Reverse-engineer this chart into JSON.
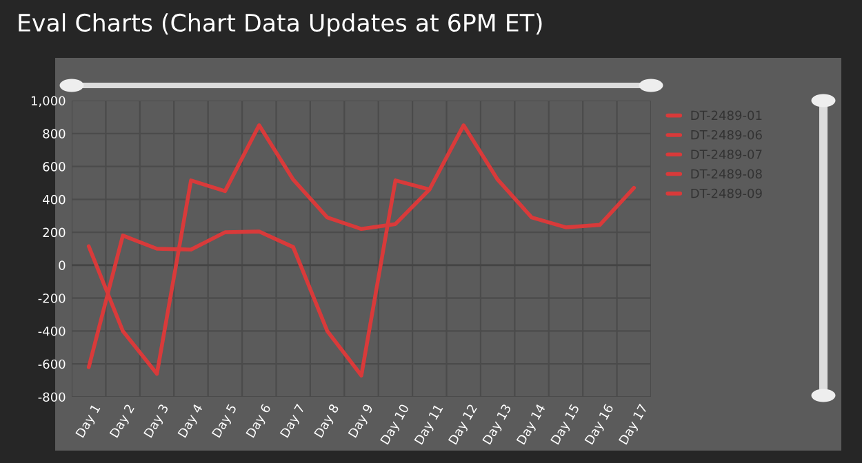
{
  "chart_data": {
    "type": "line",
    "title": "Eval Charts (Chart Data Updates at 6PM ET)",
    "categories": [
      "Day 1",
      "Day 2",
      "Day 3",
      "Day 4",
      "Day 5",
      "Day 6",
      "Day 7",
      "Day 8",
      "Day 9",
      "Day 10",
      "Day 11",
      "Day 12",
      "Day 13",
      "Day 14",
      "Day 15",
      "Day 16",
      "Day 17"
    ],
    "series": [
      {
        "name": "DT-2489-01",
        "color": "#d93a3a",
        "values": [
          115,
          -400,
          -660,
          515,
          450,
          850,
          520,
          290,
          220,
          250,
          460,
          850,
          520,
          290,
          230,
          245,
          470
        ]
      },
      {
        "name": "DT-2489-06",
        "color": "#d93a3a",
        "values": [
          -620,
          180,
          100,
          95,
          200,
          205,
          110,
          -400,
          -670,
          515,
          460,
          null,
          null,
          null,
          null,
          null,
          null
        ]
      },
      {
        "name": "DT-2489-07",
        "color": "#d93a3a",
        "values": [
          null,
          null,
          null,
          null,
          null,
          null,
          null,
          null,
          null,
          null,
          null,
          null,
          null,
          null,
          null,
          null,
          null
        ]
      },
      {
        "name": "DT-2489-08",
        "color": "#d93a3a",
        "values": [
          null,
          null,
          null,
          null,
          null,
          null,
          null,
          null,
          null,
          null,
          null,
          null,
          null,
          null,
          null,
          null,
          null
        ]
      },
      {
        "name": "DT-2489-09",
        "color": "#d93a3a",
        "values": [
          null,
          null,
          null,
          null,
          null,
          null,
          null,
          null,
          null,
          null,
          null,
          null,
          null,
          null,
          null,
          null,
          null
        ]
      }
    ],
    "ylim": [
      -800,
      1000
    ],
    "yticks": [
      -800,
      -600,
      -400,
      -200,
      0,
      200,
      400,
      600,
      800,
      {
        "value": 1000,
        "label": "1,000"
      }
    ],
    "grid": true,
    "legend": "right",
    "marker": "none",
    "line_style": "solid"
  }
}
